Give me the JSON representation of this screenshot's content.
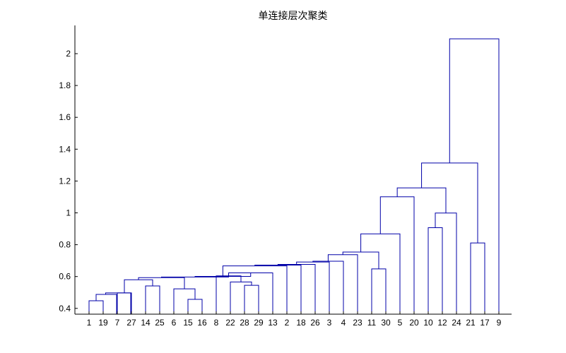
{
  "chart_data": {
    "type": "dendrogram",
    "title": "单连接层次聚类",
    "xlabel": "",
    "ylabel": "",
    "ylim": [
      0.37,
      2.2
    ],
    "yticks": [
      0.4,
      0.6,
      0.8,
      1,
      1.2,
      1.4,
      1.6,
      1.8,
      2
    ],
    "ytick_labels": [
      "0.4",
      "0.6",
      "0.8",
      "1",
      "1.2",
      "1.4",
      "1.6",
      "1.8",
      "2"
    ],
    "leaf_order": [
      1,
      19,
      7,
      27,
      14,
      25,
      6,
      15,
      16,
      8,
      22,
      28,
      29,
      13,
      2,
      18,
      26,
      3,
      4,
      23,
      11,
      30,
      5,
      20,
      10,
      12,
      24,
      21,
      17,
      9
    ],
    "leaf_labels": [
      "1",
      "19",
      "7",
      "27",
      "14",
      "25",
      "6",
      "15",
      "16",
      "8",
      "22",
      "28",
      "29",
      "13",
      "2",
      "18",
      "26",
      "3",
      "4",
      "23",
      "11",
      "30",
      "5",
      "20",
      "10",
      "12",
      "24",
      "21",
      "17",
      "9"
    ],
    "merges": [
      {
        "id": "A",
        "children": [
          "L1",
          "L19"
        ],
        "height": 0.448
      },
      {
        "id": "B",
        "children": [
          "A",
          "L7"
        ],
        "height": 0.488
      },
      {
        "id": "C",
        "children": [
          "B",
          "L27"
        ],
        "height": 0.497
      },
      {
        "id": "D",
        "children": [
          "L14",
          "L25"
        ],
        "height": 0.541
      },
      {
        "id": "E",
        "children": [
          "C",
          "D"
        ],
        "height": 0.58
      },
      {
        "id": "F",
        "children": [
          "E",
          "L6"
        ],
        "height": 0.593
      },
      {
        "id": "G",
        "children": [
          "L15",
          "L16"
        ],
        "height": 0.457
      },
      {
        "id": "H",
        "children": [
          "L6x",
          "G"
        ],
        "height": 0.523
      },
      {
        "id": "I",
        "children": [
          "F",
          "H"
        ],
        "height": 0.597
      },
      {
        "id": "J",
        "children": [
          "I",
          "L8"
        ],
        "height": 0.601
      },
      {
        "id": "K",
        "children": [
          "L28",
          "L29"
        ],
        "height": 0.545
      },
      {
        "id": "L",
        "children": [
          "L22",
          "K"
        ],
        "height": 0.566
      },
      {
        "id": "M",
        "children": [
          "L8x",
          "L"
        ],
        "height": 0.604
      },
      {
        "id": "N",
        "children": [
          "J",
          "M"
        ],
        "height": 0.623
      },
      {
        "id": "O",
        "children": [
          "N",
          "L13"
        ],
        "height": 0.667
      },
      {
        "id": "P",
        "children": [
          "L13x",
          "L2"
        ],
        "height": 0.622
      },
      {
        "id": "Q",
        "children": [
          "O",
          "L2x"
        ],
        "height": 0.672
      },
      {
        "id": "R",
        "children": [
          "Q",
          "L18"
        ],
        "height": 0.676
      },
      {
        "id": "S",
        "children": [
          "R",
          "L26"
        ],
        "height": 0.691
      },
      {
        "id": "T",
        "children": [
          "S",
          "L3"
        ],
        "height": 0.696
      },
      {
        "id": "U",
        "children": [
          "T",
          "L4"
        ],
        "height": 0.737
      },
      {
        "id": "V",
        "children": [
          "U",
          "L23"
        ],
        "height": 0.754
      },
      {
        "id": "W",
        "children": [
          "L11",
          "L30"
        ],
        "height": 0.648
      },
      {
        "id": "X",
        "children": [
          "V",
          "W"
        ],
        "height": 0.868
      },
      {
        "id": "Y",
        "children": [
          "X",
          "L5"
        ],
        "height": 1.101
      },
      {
        "id": "Z",
        "children": [
          "L10",
          "L12"
        ],
        "height": 0.907
      },
      {
        "id": "AA",
        "children": [
          "Z",
          "L24"
        ],
        "height": 0.999
      },
      {
        "id": "AB",
        "children": [
          "Y",
          "AA"
        ],
        "height": 1.157
      },
      {
        "id": "AC",
        "children": [
          "L21",
          "L17"
        ],
        "height": 0.811
      },
      {
        "id": "AD",
        "children": [
          "AB",
          "AC"
        ],
        "height": 1.313
      },
      {
        "id": "AE",
        "children": [
          "AD",
          "L9"
        ],
        "height": 2.093
      }
    ],
    "colors": {
      "link": "#0000a8",
      "axis": "#000000"
    }
  }
}
